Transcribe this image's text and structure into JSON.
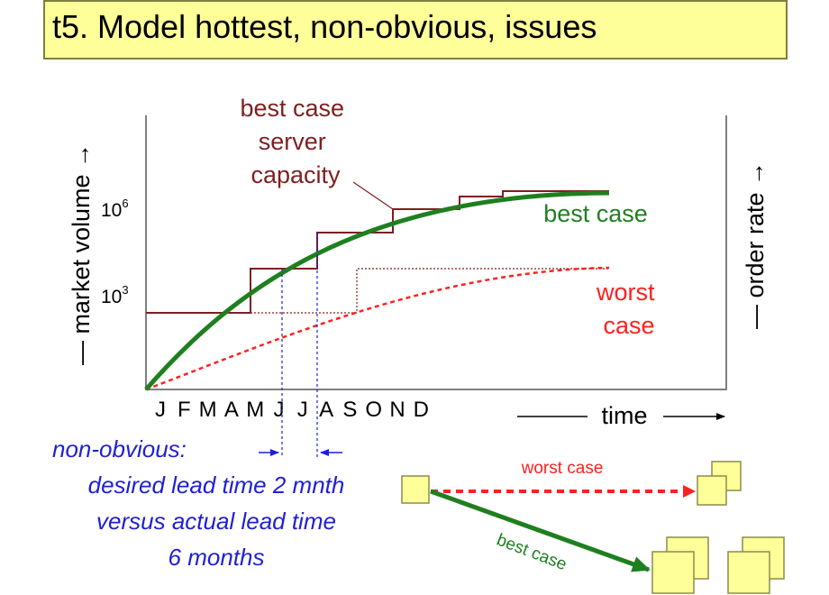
{
  "title": "t5. Model hottest, non-obvious, issues",
  "axes": {
    "left_label": "— market volume →",
    "right_label": "— order rate →",
    "x_label": "time",
    "y_ticks": [
      {
        "base": "10",
        "exp": "6"
      },
      {
        "base": "10",
        "exp": "3"
      }
    ],
    "months": [
      "J",
      "F",
      "M",
      "A",
      "M",
      "J",
      "J",
      "A",
      "S",
      "O",
      "N",
      "D"
    ]
  },
  "labels": {
    "server_capacity": [
      "best case",
      "server",
      "capacity"
    ],
    "best_case": "best case",
    "worst_case": [
      "worst",
      "case"
    ]
  },
  "note": {
    "lines": [
      "non-obvious:",
      "desired lead time 2 mnth",
      "versus actual lead time",
      "6 months"
    ]
  },
  "flow": {
    "worst_label": "worst case",
    "best_label": "best case"
  },
  "colors": {
    "title_bg": "#ffff99",
    "capacity": "#7f1f1f",
    "best": "#1f7f1f",
    "worst": "#ff2020",
    "note": "#1f1fd6",
    "box": "#ffff99"
  }
}
